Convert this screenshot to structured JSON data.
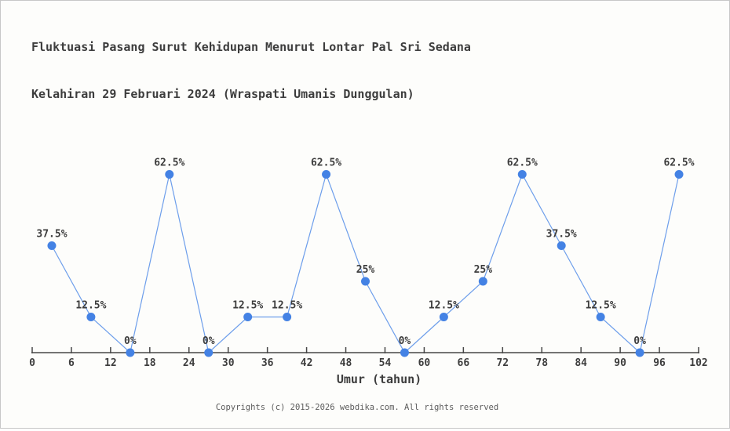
{
  "page": {
    "background": "#fdfdfb",
    "border_color": "#c7c7c7"
  },
  "chart_data": {
    "type": "line",
    "title_line1": "Fluktuasi Pasang Surut Kehidupan Menurut Lontar Pal Sri Sedana",
    "title_line2": "Kelahiran 29 Februari 2024 (Wraspati Umanis Dunggulan)",
    "xlabel": "Umur (tahun)",
    "ylabel": "",
    "x": [
      3,
      9,
      15,
      21,
      27,
      33,
      39,
      45,
      51,
      57,
      63,
      69,
      75,
      81,
      87,
      93,
      99
    ],
    "values": [
      37.5,
      12.5,
      0,
      62.5,
      0,
      12.5,
      12.5,
      62.5,
      25,
      0,
      12.5,
      25,
      62.5,
      37.5,
      12.5,
      0,
      62.5
    ],
    "point_labels": [
      "37.5%",
      "12.5%",
      "0%",
      "62.5%",
      "0%",
      "12.5%",
      "12.5%",
      "62.5%",
      "25%",
      "0%",
      "12.5%",
      "25%",
      "62.5%",
      "37.5%",
      "12.5%",
      "0%",
      "62.5%"
    ],
    "x_ticks": [
      0,
      6,
      12,
      18,
      24,
      30,
      36,
      42,
      48,
      54,
      60,
      66,
      72,
      78,
      84,
      90,
      96,
      102
    ],
    "xlim": [
      0,
      102
    ],
    "ylim": [
      0,
      70
    ],
    "grid": false,
    "legend": false,
    "colors": {
      "marker": "#4482e4",
      "line": "#6d9eeb",
      "axis": "#464646",
      "tick_text": "#3d3d3d",
      "label_text": "#3d3d3d"
    }
  },
  "footer": {
    "copyright": "Copyrights (c) 2015-2026 webdika.com. All rights reserved"
  }
}
